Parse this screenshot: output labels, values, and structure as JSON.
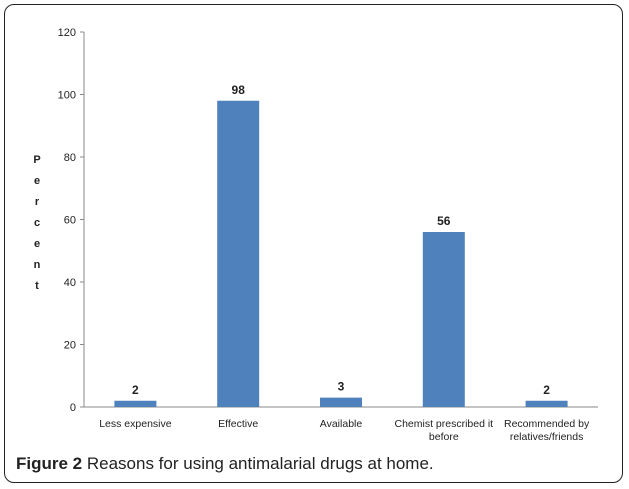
{
  "caption": {
    "label": "Figure 2",
    "text": "Reasons for using antimalarial drugs at home."
  },
  "chart_data": {
    "type": "bar",
    "categories": [
      [
        "Less expensive"
      ],
      [
        "Effective"
      ],
      [
        "Available"
      ],
      [
        "Chemist prescribed it",
        "before"
      ],
      [
        "Recommended by",
        "relatives/friends"
      ]
    ],
    "values": [
      2,
      98,
      3,
      56,
      2
    ],
    "data_labels": [
      "2",
      "98",
      "3",
      "56",
      "2"
    ],
    "ylabel": "Percent",
    "ylim": [
      0,
      120
    ],
    "yticks": [
      0,
      20,
      40,
      60,
      80,
      100,
      120
    ],
    "bar_color": "#4f81bd",
    "grid": false,
    "legend": "none"
  }
}
